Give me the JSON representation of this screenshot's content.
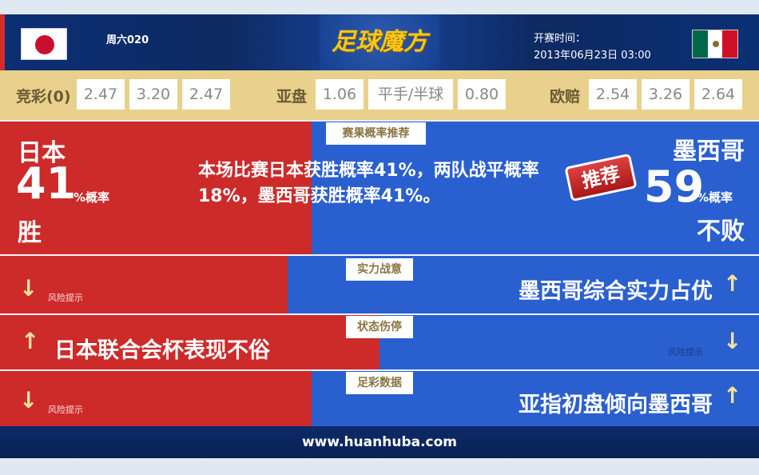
{
  "header": {
    "match_no": "周六020",
    "logo": "足球魔方",
    "kickoff_label": "开赛时间：",
    "kickoff_time": "2013年06月23日 03:00",
    "home_flag": "japan-flag",
    "away_flag": "mexico-flag"
  },
  "odds": {
    "jingcai_label": "竞彩(0)",
    "jingcai": [
      "2.47",
      "3.20",
      "2.47"
    ],
    "yapan_label": "亚盘",
    "yapan": [
      "1.06",
      "平手/半球",
      "0.80"
    ],
    "oupei_label": "欧赔",
    "oupei": [
      "2.54",
      "3.26",
      "2.64"
    ]
  },
  "prediction": {
    "tag": "赛果概率推荐",
    "home_team": "日本",
    "home_pct": "41",
    "home_pct_unit": "%概率",
    "home_result": "胜",
    "summary": "本场比赛日本获胜概率41%，两队战平概率18%，墨西哥获胜概率41%。",
    "stamp": "推荐",
    "away_team": "墨西哥",
    "away_pct": "59",
    "away_pct_unit": "%概率",
    "away_result": "不败"
  },
  "rows": [
    {
      "tag": "实力战意",
      "left": "风险提示",
      "right": "墨西哥综合实力占优"
    },
    {
      "tag": "状态伤停",
      "left": "日本联合会杯表现不俗",
      "right": "风险提示"
    },
    {
      "tag": "足彩数据",
      "left": "风险提示",
      "right": "亚指初盘倾向墨西哥"
    }
  ],
  "footer": {
    "url": "www.huanhuba.com"
  },
  "colors": {
    "red": "#cd2a2a",
    "blue": "#2a5fd0",
    "odds_bg": "#e9d08c",
    "header": "#0b2f74"
  }
}
